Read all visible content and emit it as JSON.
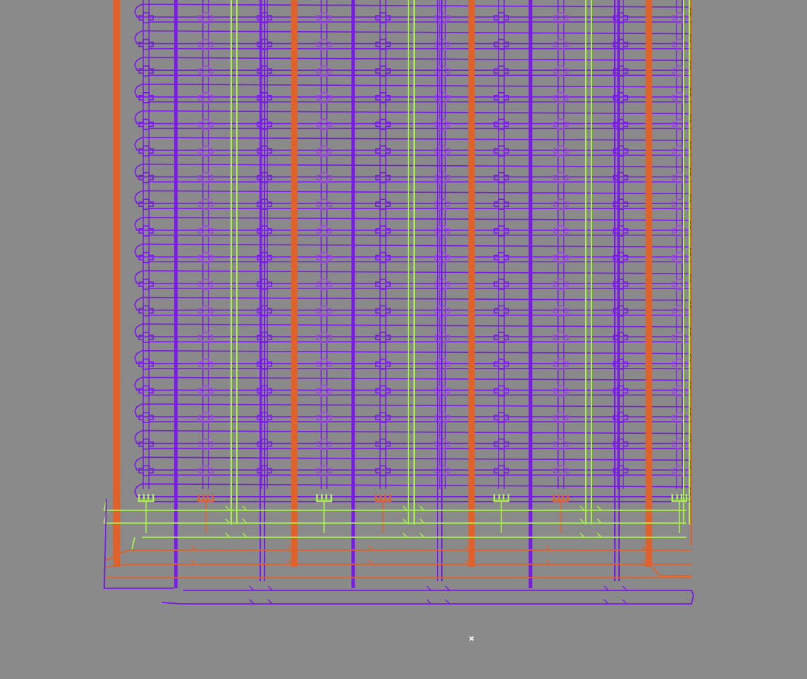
{
  "canvas": {
    "background": "#8a8a8a"
  },
  "colors": {
    "purple": "#7a1ae6",
    "orange": "#e0622a",
    "green": "#a6f04a",
    "cursor": "#ffffff"
  },
  "rail_layout": {
    "purple_heavy_count": 4,
    "orange_heavy_count": 4,
    "green_double_count": 4,
    "cell_columns": 10,
    "cell_rows": 18
  },
  "cursor": {
    "icon": "crosshair-cursor-icon"
  }
}
